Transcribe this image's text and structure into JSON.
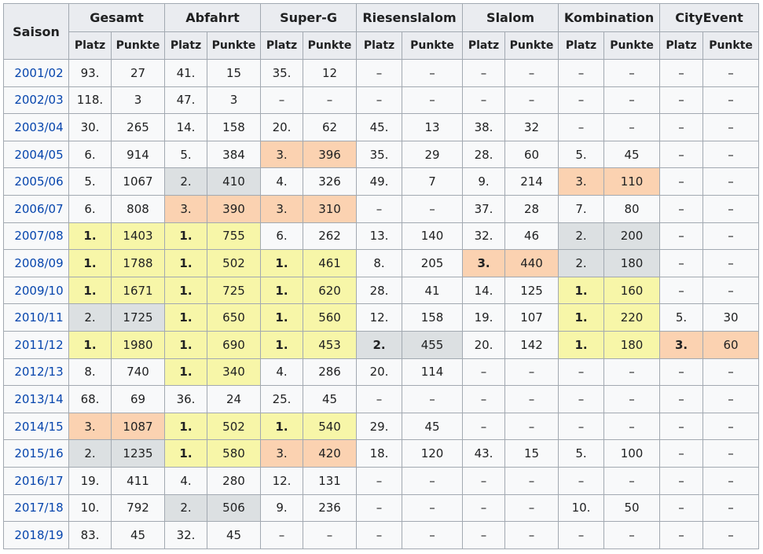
{
  "headers": {
    "saison": "Saison",
    "groups": [
      "Gesamt",
      "Abfahrt",
      "Super-G",
      "Riesenslalom",
      "Slalom",
      "Kombination",
      "CityEvent"
    ],
    "platz": "Platz",
    "punkte": "Punkte"
  },
  "colors": {
    "gold": "#f7f6a8",
    "silver": "#dce0e2",
    "bronze": "#fbd2b1",
    "link": "#0645ad"
  },
  "rows": [
    {
      "season": "2001/02",
      "cells": [
        "93.",
        "27",
        "41.",
        "15",
        "35.",
        "12",
        "–",
        "–",
        "–",
        "–",
        "–",
        "–",
        "–",
        "–"
      ]
    },
    {
      "season": "2002/03",
      "cells": [
        "118.",
        "3",
        "47.",
        "3",
        "–",
        "–",
        "–",
        "–",
        "–",
        "–",
        "–",
        "–",
        "–",
        "–"
      ]
    },
    {
      "season": "2003/04",
      "cells": [
        "30.",
        "265",
        "14.",
        "158",
        "20.",
        "62",
        "45.",
        "13",
        "38.",
        "32",
        "–",
        "–",
        "–",
        "–"
      ]
    },
    {
      "season": "2004/05",
      "cells": [
        "6.",
        "914",
        "5.",
        "384",
        "3.",
        "396",
        "35.",
        "29",
        "28.",
        "60",
        "5.",
        "45",
        "–",
        "–"
      ],
      "medals": [
        "",
        "",
        "b",
        "",
        "",
        "",
        ""
      ]
    },
    {
      "season": "2005/06",
      "cells": [
        "5.",
        "1067",
        "2.",
        "410",
        "4.",
        "326",
        "49.",
        "7",
        "9.",
        "214",
        "3.",
        "110",
        "–",
        "–"
      ],
      "medals": [
        "",
        "s",
        "",
        "",
        "",
        "b",
        ""
      ]
    },
    {
      "season": "2006/07",
      "cells": [
        "6.",
        "808",
        "3.",
        "390",
        "3.",
        "310",
        "–",
        "–",
        "37.",
        "28",
        "7.",
        "80",
        "–",
        "–"
      ],
      "medals": [
        "",
        "b",
        "b",
        "",
        "",
        "",
        ""
      ]
    },
    {
      "season": "2007/08",
      "cells": [
        "1.",
        "1403",
        "1.",
        "755",
        "6.",
        "262",
        "13.",
        "140",
        "32.",
        "46",
        "2.",
        "200",
        "–",
        "–"
      ],
      "medals": [
        "g",
        "g",
        "",
        "",
        "",
        "s",
        ""
      ]
    },
    {
      "season": "2008/09",
      "cells": [
        "1.",
        "1788",
        "1.",
        "502",
        "1.",
        "461",
        "8.",
        "205",
        "3.",
        "440",
        "2.",
        "180",
        "–",
        "–"
      ],
      "medals": [
        "g",
        "g",
        "g",
        "",
        "b",
        "s",
        ""
      ]
    },
    {
      "season": "2009/10",
      "cells": [
        "1.",
        "1671",
        "1.",
        "725",
        "1.",
        "620",
        "28.",
        "41",
        "14.",
        "125",
        "1.",
        "160",
        "–",
        "–"
      ],
      "medals": [
        "g",
        "g",
        "g",
        "",
        "",
        "g",
        ""
      ]
    },
    {
      "season": "2010/11",
      "cells": [
        "2.",
        "1725",
        "1.",
        "650",
        "1.",
        "560",
        "12.",
        "158",
        "19.",
        "107",
        "1.",
        "220",
        "5.",
        "30"
      ],
      "medals": [
        "s",
        "g",
        "g",
        "",
        "",
        "g",
        ""
      ]
    },
    {
      "season": "2011/12",
      "cells": [
        "1.",
        "1980",
        "1.",
        "690",
        "1.",
        "453",
        "2.",
        "455",
        "20.",
        "142",
        "1.",
        "180",
        "3.",
        "60"
      ],
      "medals": [
        "g",
        "g",
        "g",
        "s",
        "",
        "g",
        "b"
      ]
    },
    {
      "season": "2012/13",
      "cells": [
        "8.",
        "740",
        "1.",
        "340",
        "4.",
        "286",
        "20.",
        "114",
        "–",
        "–",
        "–",
        "–",
        "–",
        "–"
      ],
      "medals": [
        "",
        "g",
        "",
        "",
        "",
        "",
        ""
      ]
    },
    {
      "season": "2013/14",
      "cells": [
        "68.",
        "69",
        "36.",
        "24",
        "25.",
        "45",
        "–",
        "–",
        "–",
        "–",
        "–",
        "–",
        "–",
        "–"
      ]
    },
    {
      "season": "2014/15",
      "cells": [
        "3.",
        "1087",
        "1.",
        "502",
        "1.",
        "540",
        "29.",
        "45",
        "–",
        "–",
        "–",
        "–",
        "–",
        "–"
      ],
      "medals": [
        "b",
        "g",
        "g",
        "",
        "",
        "",
        ""
      ]
    },
    {
      "season": "2015/16",
      "cells": [
        "2.",
        "1235",
        "1.",
        "580",
        "3.",
        "420",
        "18.",
        "120",
        "43.",
        "15",
        "5.",
        "100",
        "–",
        "–"
      ],
      "medals": [
        "s",
        "g",
        "b",
        "",
        "",
        "",
        ""
      ]
    },
    {
      "season": "2016/17",
      "cells": [
        "19.",
        "411",
        "4.",
        "280",
        "12.",
        "131",
        "–",
        "–",
        "–",
        "–",
        "–",
        "–",
        "–",
        "–"
      ]
    },
    {
      "season": "2017/18",
      "cells": [
        "10.",
        "792",
        "2.",
        "506",
        "9.",
        "236",
        "–",
        "–",
        "–",
        "–",
        "10.",
        "50",
        "–",
        "–"
      ],
      "medals": [
        "",
        "s",
        "",
        "",
        "",
        "",
        ""
      ]
    },
    {
      "season": "2018/19",
      "cells": [
        "83.",
        "45",
        "32.",
        "45",
        "–",
        "–",
        "–",
        "–",
        "–",
        "–",
        "–",
        "–",
        "–",
        "–"
      ]
    }
  ]
}
